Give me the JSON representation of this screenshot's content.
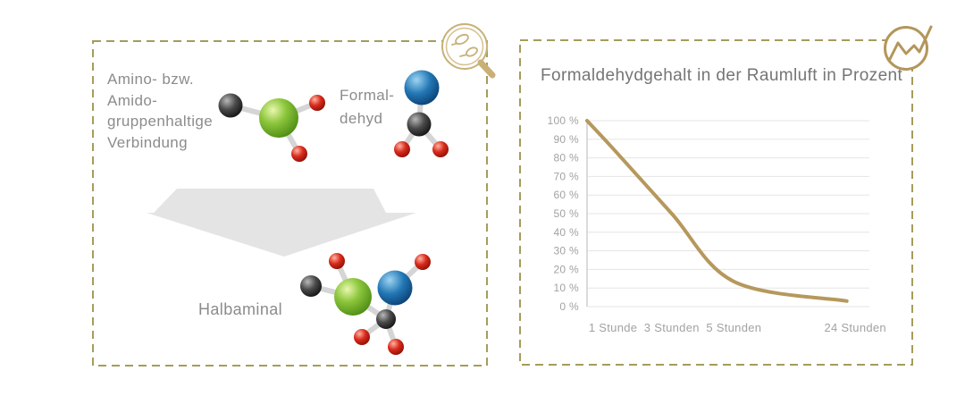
{
  "left_panel": {
    "compound_label": "Amino- bzw.\nAmido-\ngruppenhaltige\nVerbindung",
    "formaldehyde_label": "Formal-\ndehyd",
    "product_label": "Halbaminal",
    "arrow_icon": "down-arrow",
    "magnifier_icon": "magnifier-molecules-icon",
    "molecules": {
      "reactant_left": "amino-amido-compound-molecule",
      "reactant_right": "formaldehyde-molecule",
      "product": "halbaminal-molecule"
    },
    "border_color": "#a69c5b"
  },
  "right_panel": {
    "chart_icon": "line-chart-icon",
    "border_color": "#a69c5b"
  },
  "chart_data": {
    "type": "line",
    "title": "Formaldehydgehalt in der Raumluft in Prozent",
    "xlabel": "",
    "ylabel": "",
    "ylim": [
      0,
      100
    ],
    "grid": true,
    "legend": "none",
    "line_color": "#b6985c",
    "grid_color": "#e5e5e5",
    "axis_color": "#c8c8c8",
    "tick_label_color": "#a2a2a2",
    "yticks": [
      {
        "value": 0,
        "label": "0 %"
      },
      {
        "value": 10,
        "label": "10 %"
      },
      {
        "value": 20,
        "label": "20 %"
      },
      {
        "value": 30,
        "label": "30 %"
      },
      {
        "value": 40,
        "label": "40 %"
      },
      {
        "value": 50,
        "label": "50 %"
      },
      {
        "value": 60,
        "label": "60 %"
      },
      {
        "value": 70,
        "label": "70 %"
      },
      {
        "value": 80,
        "label": "80 %"
      },
      {
        "value": 90,
        "label": "90 %"
      },
      {
        "value": 100,
        "label": "100 %"
      }
    ],
    "categories": [
      {
        "label": "1 Stunde",
        "x": 0.092,
        "value": 85
      },
      {
        "label": "3 Stunden",
        "x": 0.3,
        "value": 50
      },
      {
        "label": "5 Stunden",
        "x": 0.52,
        "value": 13.5
      },
      {
        "label": "24 Stunden",
        "x": 0.95,
        "value": 3
      }
    ],
    "line_points": [
      {
        "x": 0,
        "y": 100
      },
      {
        "x": 0.092,
        "y": 85
      },
      {
        "x": 0.3,
        "y": 50
      },
      {
        "x": 0.52,
        "y": 13.5
      },
      {
        "x": 0.92,
        "y": 3
      }
    ]
  },
  "colors": {
    "accent_gold": "#b6985c",
    "icon_gold": "#c8b078",
    "border_olive": "#a69c5b",
    "text_gray": "#8c8c8c",
    "title_gray": "#757575",
    "atom_green": "#7cbd2e",
    "atom_blue": "#1f6fae",
    "atom_red": "#d22a1a",
    "atom_dark": "#2f2f2f",
    "bond_gray": "#d5d5d5",
    "arrow_gray": "#e4e4e4"
  }
}
